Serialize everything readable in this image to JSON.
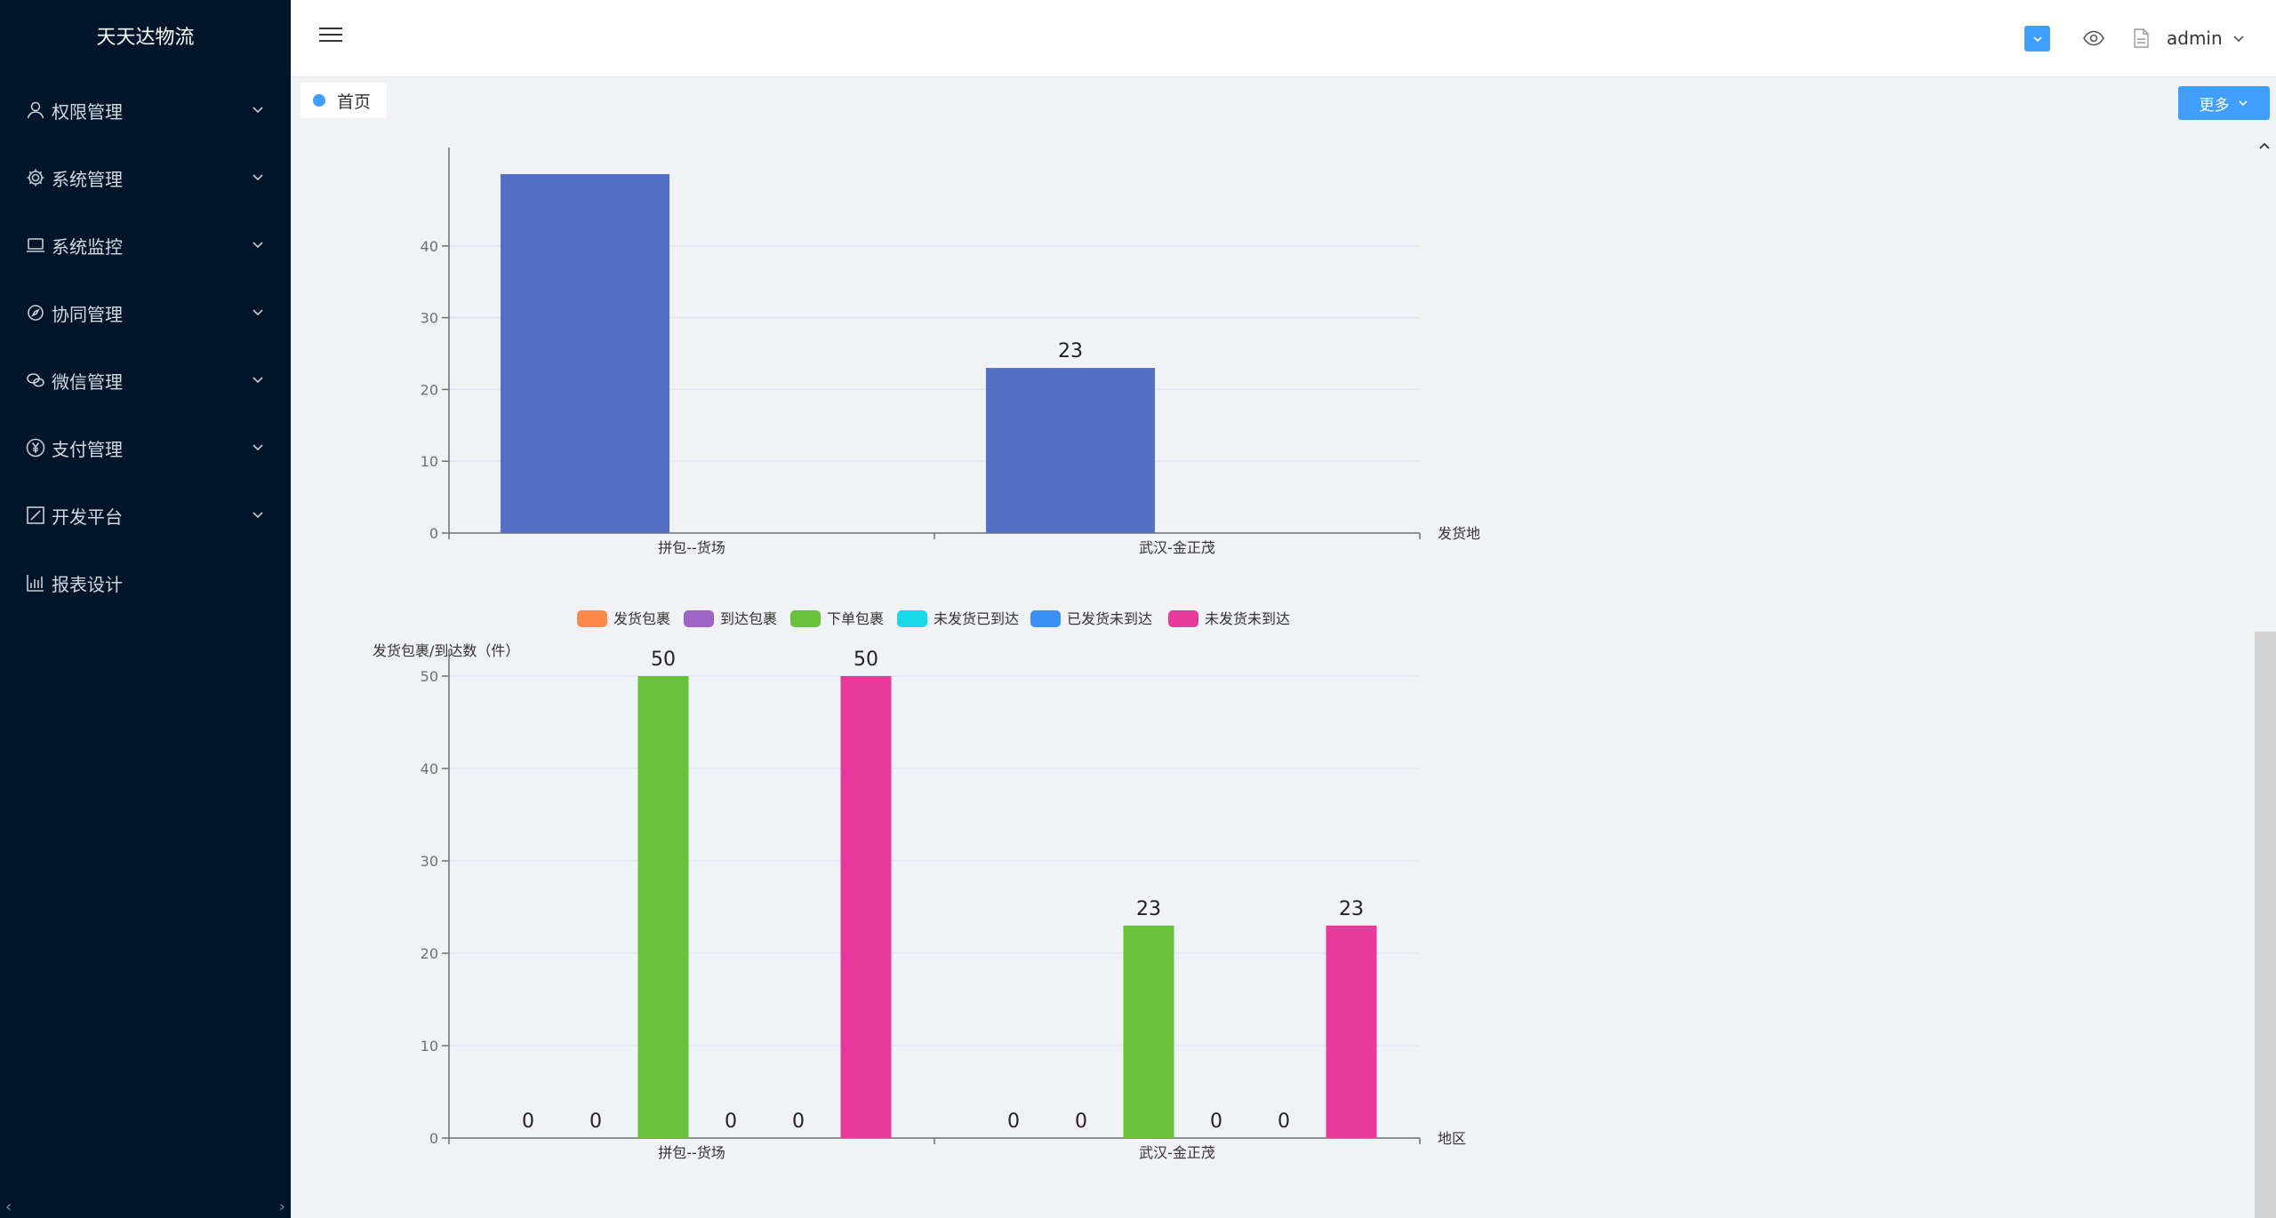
{
  "app": {
    "title": "天天达物流"
  },
  "sidebar": {
    "items": [
      {
        "label": "权限管理",
        "icon": "user-icon",
        "has_children": true
      },
      {
        "label": "系统管理",
        "icon": "gear-icon",
        "has_children": true
      },
      {
        "label": "系统监控",
        "icon": "monitor-icon",
        "has_children": true
      },
      {
        "label": "协同管理",
        "icon": "compass-icon",
        "has_children": true
      },
      {
        "label": "微信管理",
        "icon": "wechat-icon",
        "has_children": true
      },
      {
        "label": "支付管理",
        "icon": "yuan-icon",
        "has_children": true
      },
      {
        "label": "开发平台",
        "icon": "edit-icon",
        "has_children": true
      },
      {
        "label": "报表设计",
        "icon": "bar-chart-icon",
        "has_children": false
      }
    ]
  },
  "header": {
    "username": "admin"
  },
  "tabs": [
    {
      "label": "首页",
      "active": true
    }
  ],
  "tabbar": {
    "more_label": "更多"
  },
  "colors": {
    "sidebar_bg": "#001529",
    "accent": "#409eff",
    "bar_blue": "#5470c6",
    "orange": "#ff8a4c",
    "purple": "#9e64c6",
    "green": "#68c23a",
    "cyan": "#19d9e9",
    "blue": "#3b8ff3",
    "pink": "#e8399d"
  },
  "chart_data": [
    {
      "type": "bar",
      "categories": [
        "拼包--货场",
        "武汉-金正茂"
      ],
      "values": [
        50,
        23
      ],
      "xlabel": "发货地",
      "ylim": [
        0,
        50
      ],
      "y_ticks_visible": [
        0,
        10,
        20,
        30,
        40
      ],
      "data_labels_visible": [
        null,
        "23"
      ],
      "grid": true,
      "note": "top of chart scrolled out of view"
    },
    {
      "type": "bar",
      "categories": [
        "拼包--货场",
        "武汉-金正茂"
      ],
      "series": [
        {
          "name": "发货包裹",
          "values": [
            0,
            0
          ],
          "color": "#ff8a4c"
        },
        {
          "name": "到达包裹",
          "values": [
            0,
            0
          ],
          "color": "#9e64c6"
        },
        {
          "name": "下单包裹",
          "values": [
            50,
            23
          ],
          "color": "#68c23a"
        },
        {
          "name": "未发货已到达",
          "values": [
            0,
            0
          ],
          "color": "#19d9e9"
        },
        {
          "name": "已发货未到达",
          "values": [
            0,
            0
          ],
          "color": "#3b8ff3"
        },
        {
          "name": "未发货未到达",
          "values": [
            50,
            23
          ],
          "color": "#e8399d"
        }
      ],
      "ylabel": "发货包裹/到达数（件）",
      "xlabel": "地区",
      "ylim": [
        0,
        50
      ],
      "y_ticks": [
        0,
        10,
        20,
        30,
        40,
        50
      ],
      "legend": "top",
      "grid": true
    }
  ]
}
